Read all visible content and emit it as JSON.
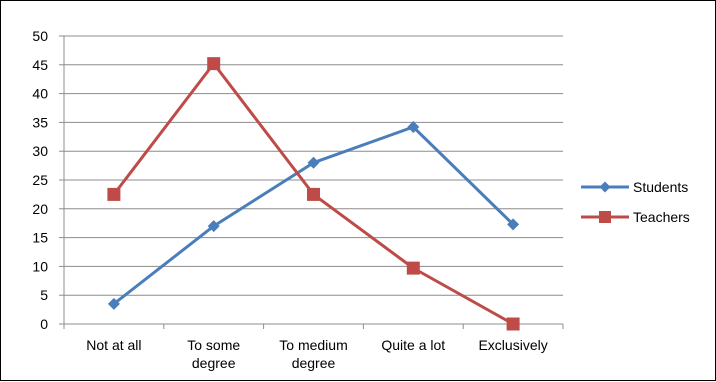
{
  "chart_data": {
    "type": "line",
    "title": "",
    "xlabel": "",
    "ylabel": "",
    "categories": [
      [
        "Not at all"
      ],
      [
        "To some",
        "degree"
      ],
      [
        "To medium",
        "degree"
      ],
      [
        "Quite a lot"
      ],
      [
        "Exclusively"
      ]
    ],
    "ylim": [
      0,
      50
    ],
    "yticks": [
      0,
      5,
      10,
      15,
      20,
      25,
      30,
      35,
      40,
      45,
      50
    ],
    "grid": true,
    "legend": "right",
    "series": [
      {
        "name": "Students",
        "color": "#4a7ebb",
        "marker": "diamond",
        "values": [
          3.5,
          17,
          28,
          34.2,
          17.3
        ]
      },
      {
        "name": "Teachers",
        "color": "#be4b48",
        "marker": "square",
        "values": [
          22.5,
          45.2,
          22.5,
          9.7,
          0
        ]
      }
    ]
  }
}
